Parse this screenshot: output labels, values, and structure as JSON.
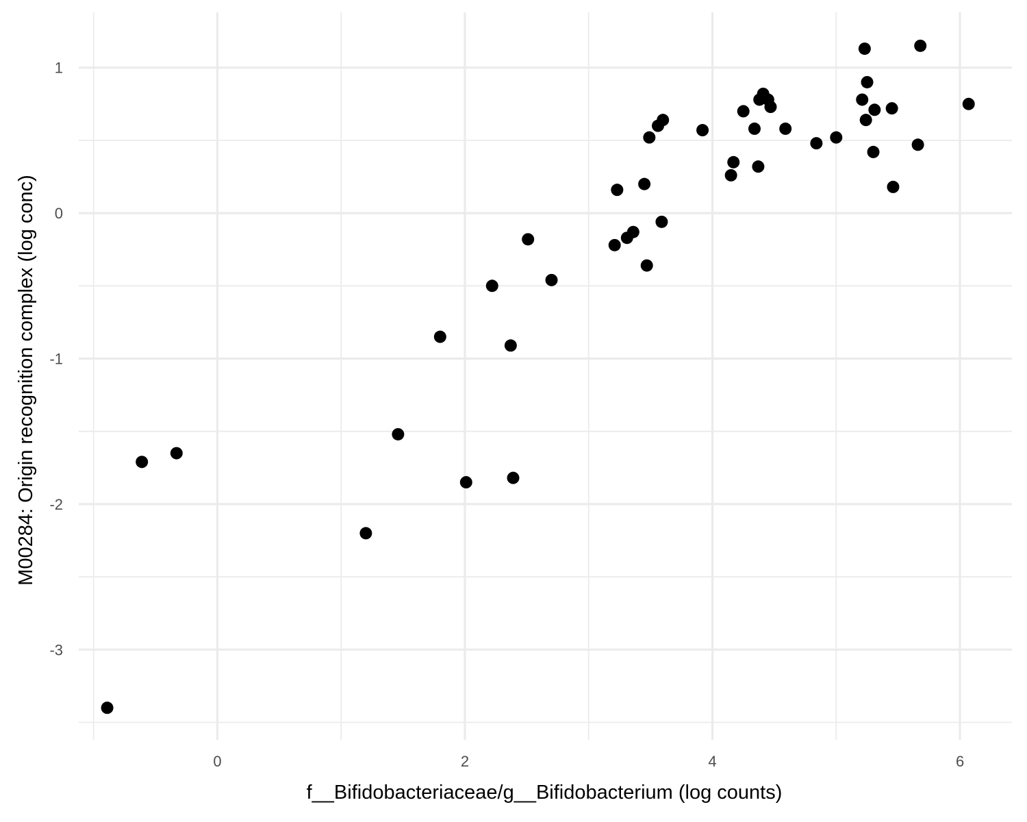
{
  "chart_data": {
    "type": "scatter",
    "title": "",
    "xlabel": "f__Bifidobacteriaceae/g__Bifidobacterium (log counts)",
    "ylabel": "M00284: Origin recognition complex (log conc)",
    "xlim": [
      -1.12,
      6.42
    ],
    "ylim": [
      -3.62,
      1.38
    ],
    "x_major_ticks": [
      0,
      2,
      4,
      6
    ],
    "x_minor_ticks": [
      -1,
      1,
      3,
      5
    ],
    "y_major_ticks": [
      -3,
      -2,
      -1,
      0,
      1
    ],
    "y_minor_ticks": [
      -3.5,
      -2.5,
      -1.5,
      -0.5,
      0.5
    ],
    "x_tick_labels": [
      "0",
      "2",
      "4",
      "6"
    ],
    "y_tick_labels": [
      "-3",
      "-2",
      "-1",
      "0",
      "1"
    ],
    "grid": true,
    "legend": "none",
    "point_color": "#000000",
    "points": [
      {
        "x": -0.89,
        "y": -3.4
      },
      {
        "x": -0.61,
        "y": -1.71
      },
      {
        "x": -0.33,
        "y": -1.65
      },
      {
        "x": 1.2,
        "y": -2.2
      },
      {
        "x": 1.46,
        "y": -1.52
      },
      {
        "x": 1.8,
        "y": -0.85
      },
      {
        "x": 2.01,
        "y": -1.85
      },
      {
        "x": 2.22,
        "y": -0.5
      },
      {
        "x": 2.37,
        "y": -0.91
      },
      {
        "x": 2.39,
        "y": -1.82
      },
      {
        "x": 2.51,
        "y": -0.18
      },
      {
        "x": 2.7,
        "y": -0.46
      },
      {
        "x": 3.21,
        "y": -0.22
      },
      {
        "x": 3.23,
        "y": 0.16
      },
      {
        "x": 3.31,
        "y": -0.17
      },
      {
        "x": 3.36,
        "y": -0.13
      },
      {
        "x": 3.45,
        "y": 0.2
      },
      {
        "x": 3.47,
        "y": -0.36
      },
      {
        "x": 3.49,
        "y": 0.52
      },
      {
        "x": 3.56,
        "y": 0.6
      },
      {
        "x": 3.59,
        "y": -0.06
      },
      {
        "x": 3.6,
        "y": 0.64
      },
      {
        "x": 3.92,
        "y": 0.57
      },
      {
        "x": 4.15,
        "y": 0.26
      },
      {
        "x": 4.17,
        "y": 0.35
      },
      {
        "x": 4.25,
        "y": 0.7
      },
      {
        "x": 4.34,
        "y": 0.58
      },
      {
        "x": 4.37,
        "y": 0.32
      },
      {
        "x": 4.38,
        "y": 0.78
      },
      {
        "x": 4.41,
        "y": 0.82
      },
      {
        "x": 4.45,
        "y": 0.78
      },
      {
        "x": 4.47,
        "y": 0.73
      },
      {
        "x": 4.59,
        "y": 0.58
      },
      {
        "x": 4.84,
        "y": 0.48
      },
      {
        "x": 5.0,
        "y": 0.52
      },
      {
        "x": 5.21,
        "y": 0.78
      },
      {
        "x": 5.23,
        "y": 1.13
      },
      {
        "x": 5.24,
        "y": 0.64
      },
      {
        "x": 5.25,
        "y": 0.9
      },
      {
        "x": 5.3,
        "y": 0.42
      },
      {
        "x": 5.31,
        "y": 0.71
      },
      {
        "x": 5.45,
        "y": 0.72
      },
      {
        "x": 5.46,
        "y": 0.18
      },
      {
        "x": 5.66,
        "y": 0.47
      },
      {
        "x": 5.68,
        "y": 1.15
      },
      {
        "x": 6.07,
        "y": 0.75
      }
    ]
  }
}
